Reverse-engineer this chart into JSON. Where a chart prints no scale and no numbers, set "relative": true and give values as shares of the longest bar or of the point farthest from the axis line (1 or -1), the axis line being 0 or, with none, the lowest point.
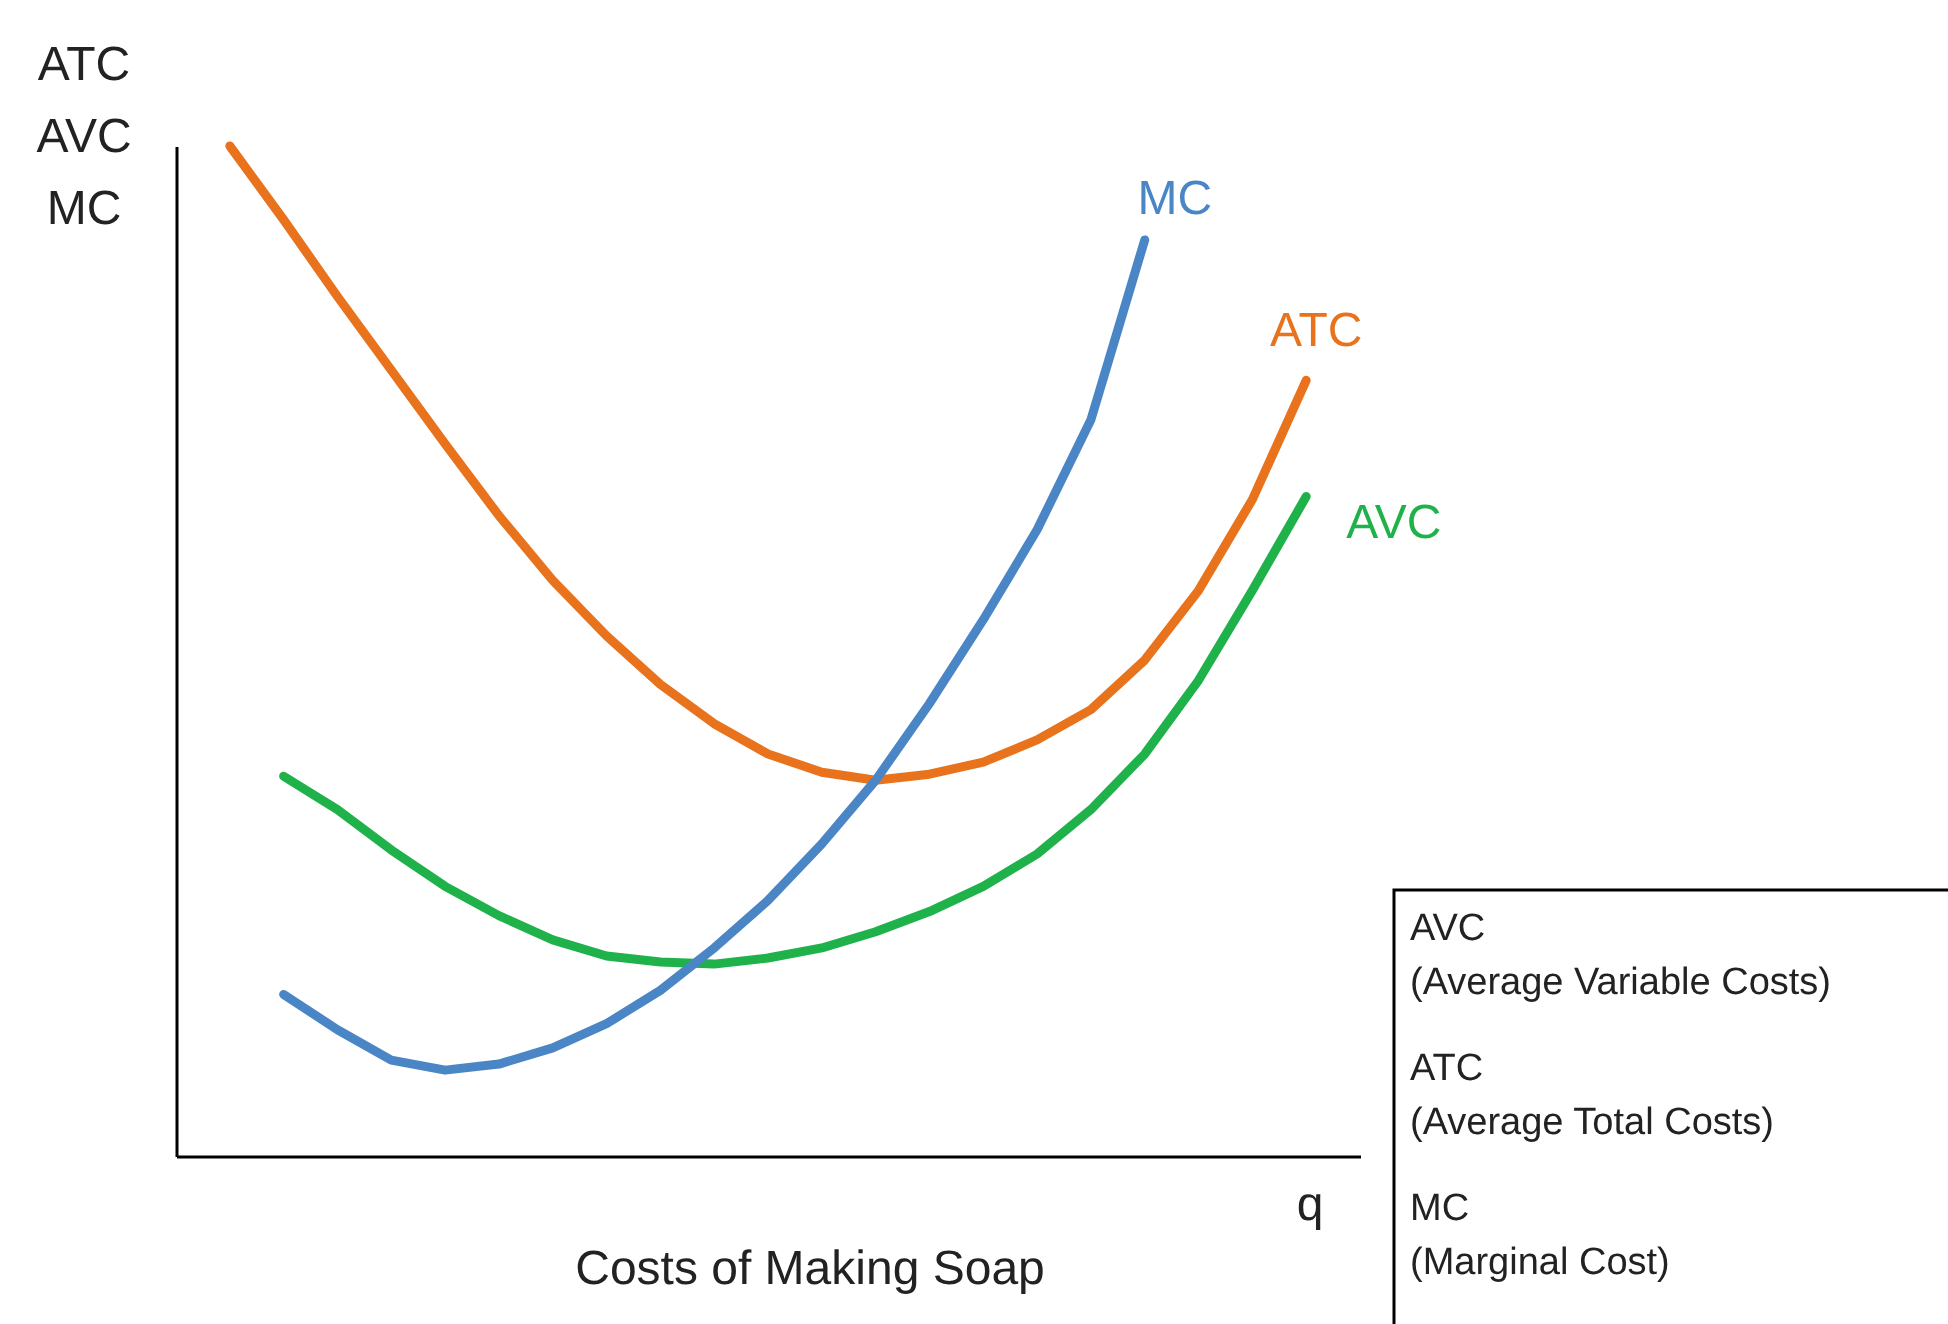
{
  "chart_data": {
    "type": "line",
    "relative": true,
    "title": "Costs of Making Soap",
    "xlabel": "q",
    "ylabel": "ATC\nAVC\nMC",
    "grid": false,
    "line_style": "solid",
    "marker": "none",
    "categories": [
      null,
      null,
      null,
      null,
      null,
      null,
      null,
      null,
      null,
      null,
      null,
      null,
      null,
      null,
      null,
      null,
      null,
      null,
      null,
      null,
      null
    ],
    "series": [
      {
        "name": "ATC",
        "color": "#e8731c",
        "values": [
          1.0,
          0.927,
          0.851,
          0.778,
          0.705,
          0.634,
          0.57,
          0.515,
          0.467,
          0.428,
          0.398,
          0.38,
          0.372,
          0.378,
          0.39,
          0.412,
          0.442,
          0.491,
          0.56,
          0.65,
          0.768
        ]
      },
      {
        "name": "AVC",
        "color": "#1fb24a",
        "values": [
          null,
          0.376,
          0.343,
          0.303,
          0.267,
          0.238,
          0.214,
          0.198,
          0.192,
          0.19,
          0.196,
          0.206,
          0.222,
          0.242,
          0.267,
          0.299,
          0.343,
          0.398,
          0.471,
          0.56,
          0.653
        ]
      },
      {
        "name": "MC",
        "color": "#4a86c5",
        "values": [
          null,
          0.16,
          0.125,
          0.095,
          0.085,
          0.091,
          0.107,
          0.131,
          0.164,
          0.206,
          0.253,
          0.309,
          0.372,
          0.448,
          0.531,
          0.62,
          0.729,
          0.907,
          null,
          null,
          null
        ]
      }
    ],
    "annotations": [
      "AVC\n(Average Variable Costs)",
      "ATC\n(Average Total Costs)",
      "MC\n(Marginal Cost)"
    ]
  }
}
